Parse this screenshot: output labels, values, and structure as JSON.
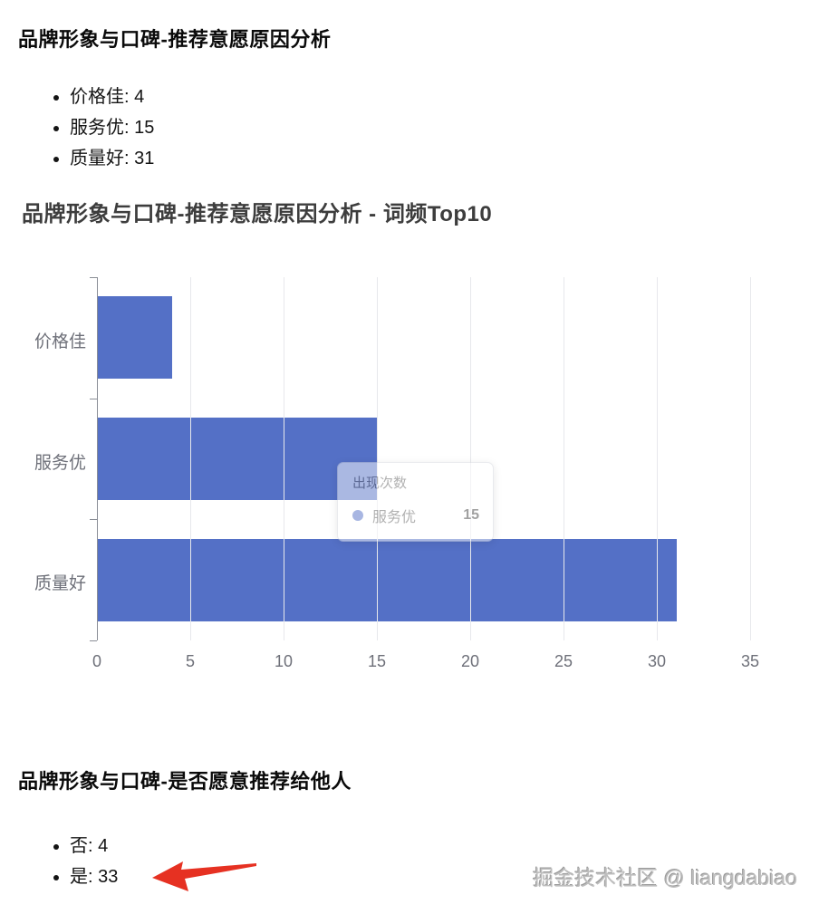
{
  "section1": {
    "title": "品牌形象与口碑-推荐意愿原因分析",
    "items": [
      "价格佳: 4",
      "服务优: 15",
      "质量好: 31"
    ]
  },
  "chart": {
    "title": "品牌形象与口碑-推荐意愿原因分析 - 词频Top10",
    "tooltip": {
      "header": "出现次数",
      "series": "服务优",
      "value": "15"
    }
  },
  "chart_data": {
    "type": "bar",
    "orientation": "horizontal",
    "title": "品牌形象与口碑-推荐意愿原因分析 - 词频Top10",
    "categories": [
      "价格佳",
      "服务优",
      "质量好"
    ],
    "values": [
      4,
      15,
      31
    ],
    "series_name": "出现次数",
    "xlabel": "",
    "ylabel": "",
    "xlim": [
      0,
      35
    ],
    "xticks": [
      0,
      5,
      10,
      15,
      20,
      25,
      30,
      35
    ],
    "grid": true,
    "legend": "none",
    "bar_color": "#5470C6"
  },
  "section2": {
    "title": "品牌形象与口碑-是否愿意推荐给他人",
    "items": [
      "否: 4",
      "是: 33"
    ]
  },
  "watermark": "掘金技术社区 @ liangdabiao",
  "colors": {
    "bar": "#5470C6",
    "axis_label": "#6E7079",
    "grid_line": "#E7E8EC",
    "arrow": "#E63122"
  }
}
